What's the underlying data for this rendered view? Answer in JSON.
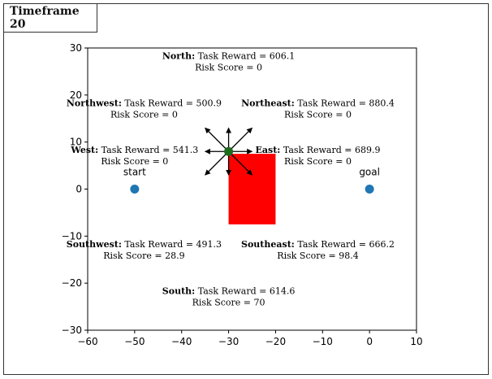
{
  "title": "Timeframe 20",
  "chart_data": {
    "type": "scatter",
    "xlim": [
      -60,
      10
    ],
    "ylim": [
      -30,
      30
    ],
    "xticks": [
      -60,
      -50,
      -40,
      -30,
      -20,
      -10,
      0,
      10
    ],
    "yticks": [
      -30,
      -20,
      -10,
      0,
      10,
      20,
      30
    ],
    "points": [
      {
        "name": "start",
        "x": -50,
        "y": 0,
        "color": "#1f77b4"
      },
      {
        "name": "goal",
        "x": 0,
        "y": 0,
        "color": "#1f77b4"
      }
    ],
    "agent": {
      "x": -30,
      "y": 8,
      "color": "#1e6b1e"
    },
    "obstacle": {
      "x0": -30,
      "x1": -20,
      "y0": -7.5,
      "y1": 7.5,
      "color": "#ff0000"
    },
    "arrow_length": 5,
    "directions": [
      {
        "name": "North",
        "reward": "606.1",
        "risk": "0",
        "lx": -30,
        "ly": 27.5
      },
      {
        "name": "Northwest",
        "reward": "500.9",
        "risk": "0",
        "lx": -48,
        "ly": 17.5
      },
      {
        "name": "Northeast",
        "reward": "880.4",
        "risk": "0",
        "lx": -11,
        "ly": 17.5
      },
      {
        "name": "West",
        "reward": "541.3",
        "risk": "0",
        "lx": -50,
        "ly": 7.5
      },
      {
        "name": "East",
        "reward": "689.9",
        "risk": "0",
        "lx": -11,
        "ly": 7.5
      },
      {
        "name": "Southwest",
        "reward": "491.3",
        "risk": "28.9",
        "lx": -48,
        "ly": -12.5
      },
      {
        "name": "Southeast",
        "reward": "666.2",
        "risk": "98.4",
        "lx": -11,
        "ly": -12.5
      },
      {
        "name": "South",
        "reward": "614.6",
        "risk": "70",
        "lx": -30,
        "ly": -22.5
      }
    ],
    "reward_label": "Task Reward",
    "risk_label": "Risk Score"
  }
}
